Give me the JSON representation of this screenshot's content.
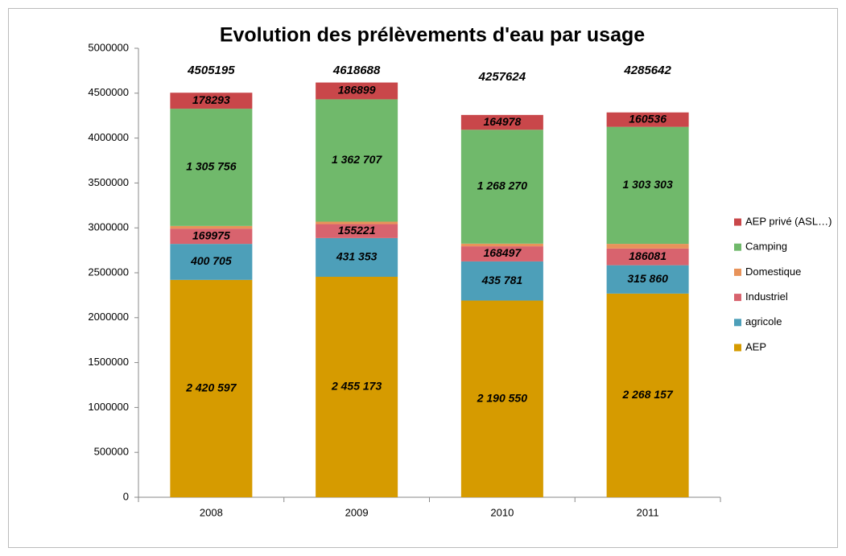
{
  "chart_data": {
    "type": "stacked_bar",
    "title": "Evolution des prélèvements d'eau par usage",
    "categories": [
      "2008",
      "2009",
      "2010",
      "2011"
    ],
    "totals": [
      4505195,
      4618688,
      4257624,
      4285642
    ],
    "series": [
      {
        "name": "AEP",
        "color": "#d69b00",
        "values": [
          2420597,
          2455173,
          2190550,
          2268157
        ],
        "value_labels": [
          "2 420 597",
          "2 455 173",
          "2 190 550",
          "2 268 157"
        ]
      },
      {
        "name": "agricole",
        "color": "#4d9fb9",
        "values": [
          400705,
          431353,
          435781,
          315860
        ],
        "value_labels": [
          "400 705",
          "431 353",
          "435 781",
          "315 860"
        ]
      },
      {
        "name": "Industriel",
        "color": "#d8636e",
        "values": [
          169975,
          155221,
          168497,
          186081
        ],
        "value_labels": [
          "169975",
          "155221",
          "168497",
          "186081"
        ]
      },
      {
        "name": "Domestique",
        "color": "#e8935a",
        "values": [
          29869,
          27335,
          29548,
          51705
        ]
      },
      {
        "name": "Camping",
        "color": "#70b96b",
        "values": [
          1305756,
          1362707,
          1268270,
          1303303
        ],
        "value_labels": [
          "1 305 756",
          "1 362 707",
          "1 268 270",
          "1 303 303"
        ]
      },
      {
        "name": "AEP privé (ASL…)",
        "color": "#c9474a",
        "values": [
          178293,
          186899,
          164978,
          160536
        ],
        "value_labels": [
          "178293",
          "186899",
          "164978",
          "160536"
        ]
      }
    ],
    "ylim": [
      0,
      5000000
    ],
    "yticks": [
      0,
      500000,
      1000000,
      1500000,
      2000000,
      2500000,
      3000000,
      3500000,
      4000000,
      4500000,
      5000000
    ],
    "grid": false,
    "legend": "right"
  }
}
